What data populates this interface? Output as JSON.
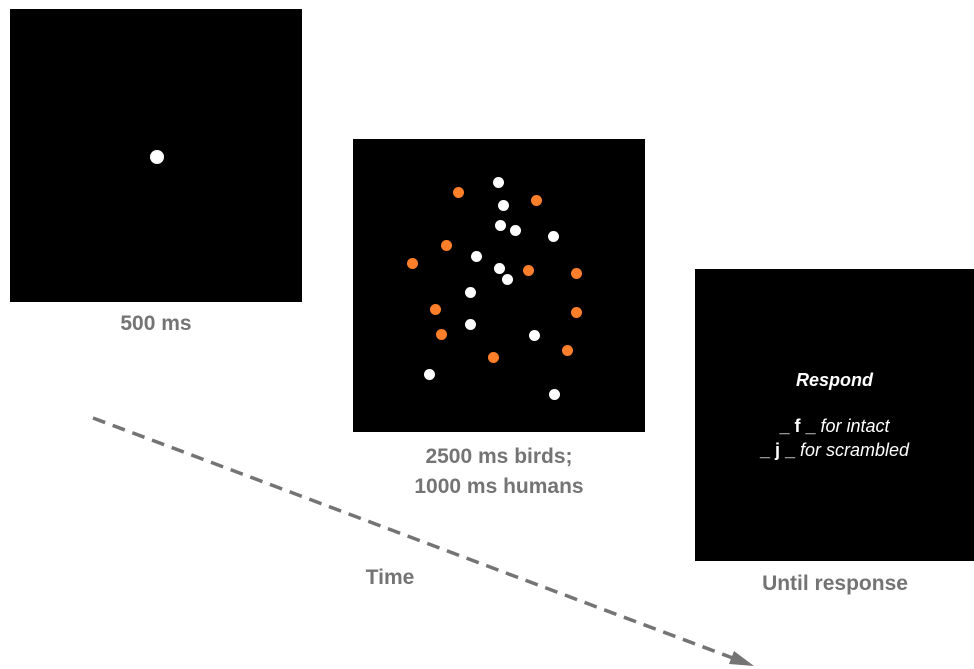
{
  "fixation": {
    "duration_label": "500 ms"
  },
  "stimulus": {
    "duration_line1": "2500 ms birds;",
    "duration_line2": "1000 ms humans",
    "dot_colors": {
      "white": "#ffffff",
      "orange": "#ff7f2a"
    }
  },
  "response": {
    "title": "Respond",
    "option_intact_key": "_ f _",
    "option_intact_text": "for intact",
    "option_scrambled_key": "_ j _",
    "option_scrambled_text": "for scrambled",
    "duration_label": "Until response"
  },
  "timeline": {
    "label": "Time",
    "color": "#747474"
  }
}
